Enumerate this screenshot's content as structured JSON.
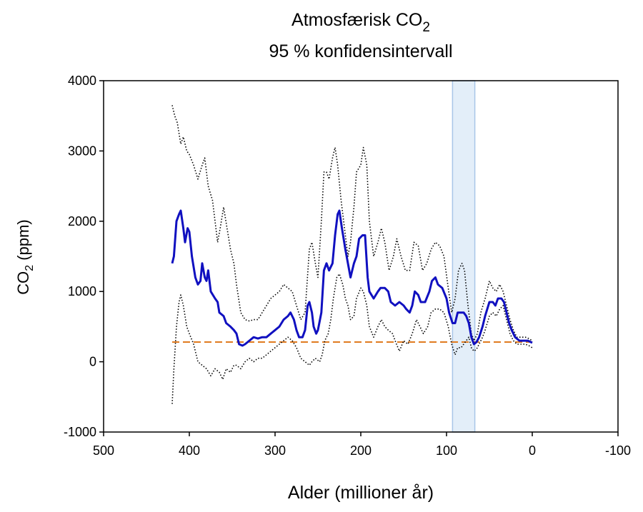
{
  "chart_data": {
    "type": "line",
    "title": "Atmosfærisk CO",
    "title_subscript": "2",
    "subtitle": "95 % konfidensintervall",
    "xlabel": "Alder (millioner år)",
    "ylabel": "CO",
    "ylabel_subscript": "2",
    "ylabel_unit": " (ppm)",
    "xlim": [
      500,
      -100
    ],
    "xticks": [
      500,
      400,
      300,
      200,
      100,
      0,
      -100
    ],
    "ylim": [
      -1000,
      4000
    ],
    "yticks": [
      -1000,
      0,
      1000,
      2000,
      3000,
      4000
    ],
    "reference_line": {
      "value": 280,
      "color": "#e07b20"
    },
    "shaded_band": {
      "from": 93,
      "to": 67,
      "color": "#e3eef9",
      "edge_color": "#a9c6e8"
    },
    "series": [
      {
        "color": "#1010c0",
        "style": "solid",
        "x": [
          420,
          418,
          415,
          412,
          410,
          407,
          405,
          402,
          400,
          397,
          393,
          390,
          387,
          385,
          382,
          380,
          378,
          375,
          370,
          367,
          365,
          360,
          357,
          352,
          348,
          345,
          342,
          338,
          335,
          330,
          325,
          320,
          315,
          310,
          305,
          300,
          295,
          290,
          285,
          282,
          278,
          275,
          272,
          268,
          265,
          262,
          260,
          257,
          255,
          252,
          250,
          246,
          243,
          240,
          237,
          233,
          230,
          227,
          225,
          222,
          218,
          215,
          212,
          208,
          205,
          202,
          198,
          195,
          192,
          190,
          185,
          180,
          177,
          172,
          168,
          165,
          160,
          155,
          150,
          147,
          143,
          140,
          137,
          133,
          130,
          125,
          120,
          117,
          113,
          110,
          105,
          100,
          97,
          93,
          90,
          87,
          84,
          80,
          77,
          74,
          71,
          68,
          65,
          62,
          58,
          55,
          50,
          46,
          43,
          40,
          36,
          33,
          30,
          27,
          24,
          20,
          15,
          10,
          5,
          0
        ],
        "values": [
          1400,
          1500,
          2000,
          2100,
          2150,
          1900,
          1700,
          1900,
          1850,
          1500,
          1200,
          1100,
          1150,
          1400,
          1200,
          1150,
          1300,
          1000,
          900,
          850,
          700,
          650,
          550,
          500,
          450,
          400,
          250,
          230,
          250,
          300,
          350,
          330,
          350,
          350,
          400,
          450,
          500,
          600,
          650,
          700,
          600,
          450,
          350,
          350,
          450,
          800,
          850,
          700,
          500,
          400,
          450,
          700,
          1300,
          1400,
          1300,
          1400,
          1800,
          2100,
          2150,
          1900,
          1600,
          1400,
          1200,
          1400,
          1500,
          1750,
          1800,
          1800,
          1200,
          1000,
          900,
          1000,
          1050,
          1050,
          1000,
          850,
          800,
          850,
          800,
          750,
          700,
          800,
          1000,
          950,
          850,
          850,
          1000,
          1150,
          1200,
          1100,
          1050,
          900,
          700,
          550,
          550,
          700,
          700,
          700,
          650,
          550,
          350,
          250,
          280,
          350,
          500,
          650,
          850,
          850,
          800,
          900,
          900,
          850,
          700,
          550,
          450,
          350,
          300,
          300,
          300,
          270
        ]
      },
      {
        "color": "#000000",
        "style": "dotted",
        "x": [
          420,
          417,
          414,
          410,
          407,
          403,
          400,
          395,
          390,
          385,
          382,
          378,
          373,
          370,
          367,
          364,
          360,
          356,
          352,
          348,
          345,
          340,
          335,
          330,
          325,
          320,
          315,
          310,
          305,
          300,
          295,
          290,
          285,
          280,
          275,
          270,
          265,
          260,
          257,
          253,
          250,
          246,
          243,
          240,
          237,
          233,
          230,
          227,
          223,
          218,
          215,
          212,
          208,
          205,
          200,
          197,
          193,
          190,
          185,
          180,
          176,
          172,
          167,
          162,
          158,
          153,
          148,
          143,
          138,
          133,
          128,
          123,
          118,
          113,
          108,
          103,
          98,
          94,
          90,
          86,
          82,
          79,
          75,
          71,
          68,
          64,
          60,
          55,
          50,
          46,
          42,
          38,
          34,
          30,
          26,
          22,
          18,
          13,
          8,
          4,
          0
        ],
        "values": [
          3650,
          3500,
          3400,
          3100,
          3200,
          3000,
          2950,
          2800,
          2600,
          2800,
          2900,
          2500,
          2300,
          2000,
          1700,
          1900,
          2200,
          1900,
          1600,
          1400,
          1100,
          700,
          600,
          580,
          600,
          600,
          700,
          800,
          900,
          950,
          1000,
          1100,
          1050,
          1000,
          800,
          600,
          700,
          1600,
          1700,
          1400,
          1200,
          2000,
          2700,
          2700,
          2600,
          2900,
          3050,
          2800,
          2300,
          1800,
          1500,
          1700,
          2200,
          2700,
          2800,
          3050,
          2800,
          2000,
          1500,
          1700,
          1900,
          1700,
          1300,
          1500,
          1750,
          1500,
          1300,
          1300,
          1700,
          1650,
          1300,
          1400,
          1600,
          1700,
          1650,
          1500,
          1050,
          700,
          900,
          1300,
          1400,
          1300,
          800,
          400,
          300,
          400,
          700,
          900,
          1150,
          1050,
          1000,
          1100,
          1000,
          800,
          600,
          450,
          350,
          350,
          350,
          330,
          300
        ]
      },
      {
        "color": "#000000",
        "style": "dotted",
        "x": [
          420,
          418,
          415,
          412,
          410,
          407,
          403,
          400,
          395,
          390,
          385,
          380,
          375,
          370,
          365,
          361,
          357,
          352,
          348,
          345,
          340,
          335,
          330,
          325,
          320,
          315,
          310,
          305,
          300,
          295,
          290,
          285,
          280,
          275,
          270,
          265,
          260,
          257,
          253,
          248,
          245,
          242,
          238,
          235,
          232,
          228,
          225,
          221,
          218,
          215,
          212,
          208,
          205,
          200,
          197,
          193,
          190,
          185,
          180,
          176,
          172,
          168,
          163,
          160,
          155,
          150,
          145,
          140,
          135,
          131,
          127,
          122,
          118,
          113,
          108,
          103,
          98,
          94,
          90,
          87,
          83,
          80,
          77,
          74,
          71,
          68,
          65,
          62,
          58,
          55,
          50,
          46,
          42,
          38,
          34,
          30,
          26,
          22,
          18,
          13,
          8,
          4,
          0
        ],
        "values": [
          -600,
          -100,
          500,
          850,
          950,
          800,
          500,
          400,
          250,
          0,
          -50,
          -100,
          -200,
          -100,
          -150,
          -250,
          -100,
          -150,
          -50,
          -50,
          -100,
          0,
          50,
          0,
          50,
          50,
          100,
          150,
          200,
          250,
          300,
          350,
          300,
          200,
          50,
          0,
          -50,
          0,
          50,
          0,
          100,
          300,
          400,
          600,
          900,
          1200,
          1250,
          1100,
          900,
          800,
          600,
          650,
          900,
          1050,
          1000,
          800,
          500,
          350,
          500,
          600,
          500,
          450,
          400,
          300,
          150,
          300,
          250,
          400,
          600,
          500,
          400,
          500,
          700,
          750,
          750,
          700,
          500,
          250,
          100,
          200,
          200,
          250,
          300,
          350,
          200,
          150,
          180,
          250,
          350,
          450,
          650,
          700,
          650,
          750,
          800,
          600,
          400,
          300,
          250,
          250,
          250,
          230,
          200
        ]
      }
    ]
  }
}
